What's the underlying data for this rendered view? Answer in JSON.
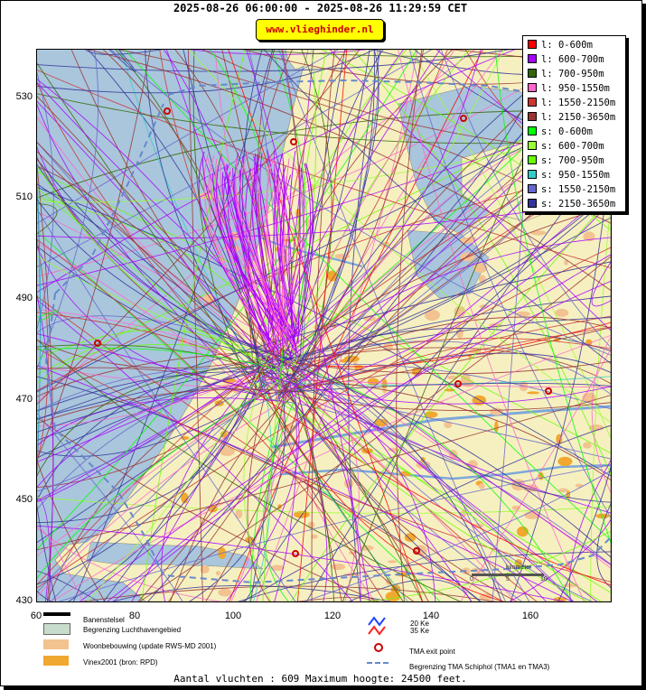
{
  "title": "2025-08-26 06:00:00 - 2025-08-26 11:29:59 CET",
  "url": "www.vlieghinder.nl",
  "axes": {
    "y_ticks": [
      "530",
      "510",
      "490",
      "470",
      "450",
      "430"
    ],
    "x_ticks": [
      "60",
      "80",
      "100",
      "120",
      "140",
      "160"
    ],
    "xlim": [
      60,
      176
    ],
    "ylim": [
      430,
      540
    ]
  },
  "legend": [
    {
      "label": "l: 0-600m",
      "color": "#ff0000"
    },
    {
      "label": "l: 600-700m",
      "color": "#aa00ff"
    },
    {
      "label": "l: 700-950m",
      "color": "#336600"
    },
    {
      "label": "l: 950-1550m",
      "color": "#ff66cc"
    },
    {
      "label": "l: 1550-2150m",
      "color": "#cc3333"
    },
    {
      "label": "l: 2150-3650m",
      "color": "#993333"
    },
    {
      "label": "s: 0-600m",
      "color": "#00ff00"
    },
    {
      "label": "s: 600-700m",
      "color": "#99ff33"
    },
    {
      "label": "s: 700-950m",
      "color": "#66ff00"
    },
    {
      "label": "s: 950-1550m",
      "color": "#33cccc"
    },
    {
      "label": "s: 1550-2150m",
      "color": "#6666cc"
    },
    {
      "label": "s: 2150-3650m",
      "color": "#333399"
    }
  ],
  "bottom_legend": {
    "banenstelsel": "Banenstelsel",
    "begrenzing": "Begrenzing Luchthavengebied",
    "woonbebouwing": "Woonbebouwing (update RWS-MD 2001)",
    "vinex": "Vinex2001 (bron: RPD)",
    "ke20": "20 Ke",
    "ke35": "35 Ke",
    "tma_exit": "TMA exit point",
    "tma_begrenzing": "Begrenzing TMA Schiphol  (TMA1 en TMA3)"
  },
  "footer": "Aantal vluchten : 609 Maximum hoogte: 24500 feet.",
  "scale_label": "kilometer",
  "scale_ticks": [
    "0",
    "5",
    "10"
  ],
  "colors": {
    "sea": "#a9c6dc",
    "land": "#f6f0c0",
    "urban": "#f0b060",
    "water": "#7ea8d8",
    "tma": "#6688cc",
    "exit": "#cc0000"
  }
}
